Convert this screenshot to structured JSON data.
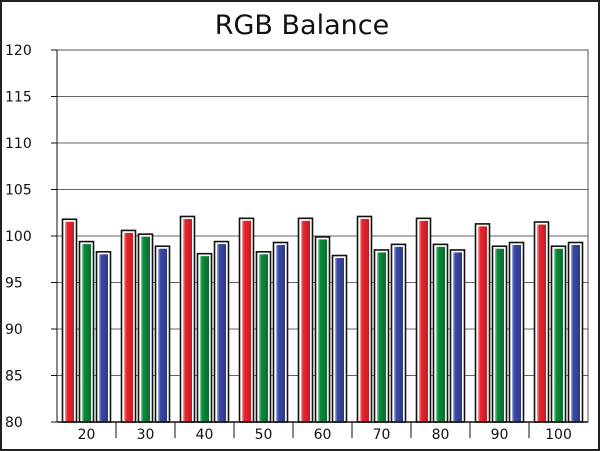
{
  "chart_data": {
    "type": "bar",
    "title": "RGB Balance",
    "xlabel": "",
    "ylabel": "",
    "categories": [
      "20",
      "30",
      "40",
      "50",
      "60",
      "70",
      "80",
      "90",
      "100"
    ],
    "series": [
      {
        "color": "#e8262e",
        "values": [
          101.8,
          100.6,
          102.1,
          101.9,
          101.9,
          102.1,
          101.9,
          101.3,
          101.5
        ]
      },
      {
        "color": "#0d8a3c",
        "values": [
          99.4,
          100.2,
          98.1,
          98.3,
          99.9,
          98.5,
          99.1,
          98.9,
          98.9
        ]
      },
      {
        "color": "#3b4aa6",
        "values": [
          98.3,
          98.9,
          99.4,
          99.3,
          97.9,
          99.1,
          98.5,
          99.3,
          99.3
        ]
      }
    ],
    "ylim": [
      80,
      120
    ],
    "yticks": [
      80,
      85,
      90,
      95,
      100,
      105,
      110,
      115,
      120
    ],
    "grid": true,
    "legend": "none"
  }
}
